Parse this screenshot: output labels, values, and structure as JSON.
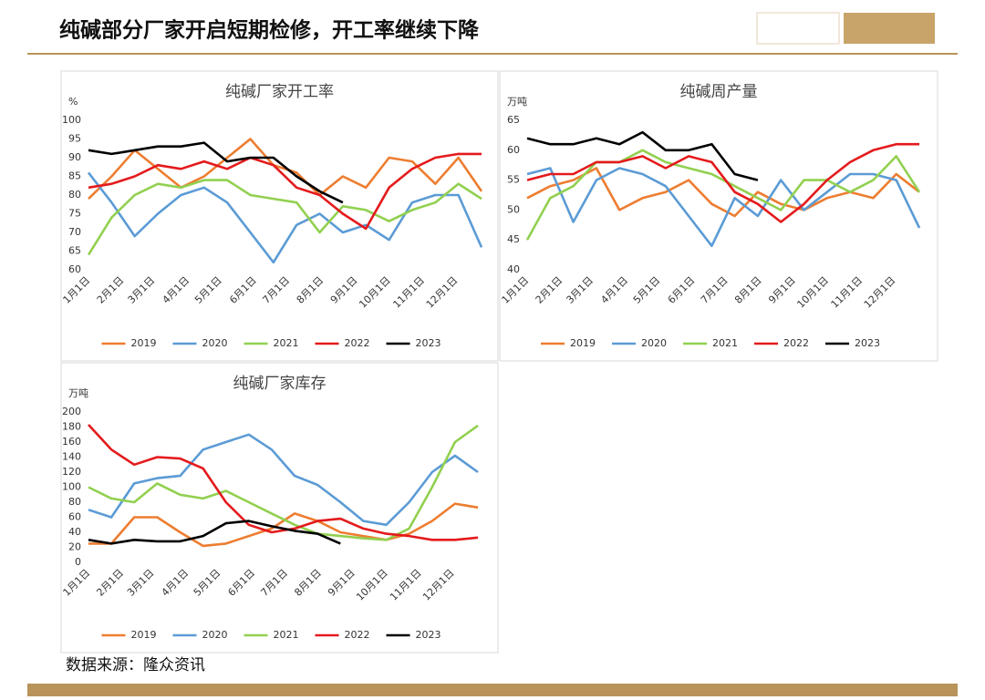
{
  "header": {
    "title": "纯碱部分厂家开启短期检修，开工率继续下降"
  },
  "footer": {
    "source": "数据来源：隆众资讯"
  },
  "chart_data": [
    {
      "type": "line",
      "title": "纯碱厂家开工率",
      "ylabel": "%",
      "x": [
        0,
        3,
        6,
        9,
        12,
        15,
        18,
        21,
        24,
        27,
        30,
        33,
        36,
        39,
        42,
        45,
        48,
        51
      ],
      "xlim": [
        0,
        51
      ],
      "xticks": [
        {
          "value": 0,
          "label": "1月1日"
        },
        {
          "value": 4.4,
          "label": "2月1日"
        },
        {
          "value": 8.4,
          "label": "3月1日"
        },
        {
          "value": 12.9,
          "label": "4月1日"
        },
        {
          "value": 17.1,
          "label": "5月1日"
        },
        {
          "value": 21.6,
          "label": "6月1日"
        },
        {
          "value": 25.9,
          "label": "7月1日"
        },
        {
          "value": 30.3,
          "label": "8月1日"
        },
        {
          "value": 34.7,
          "label": "9月1日"
        },
        {
          "value": 39,
          "label": "10月1日"
        },
        {
          "value": 43.4,
          "label": "11月1日"
        },
        {
          "value": 47.7,
          "label": "12月1日"
        }
      ],
      "ylim": [
        60,
        100
      ],
      "yticks": [
        60,
        65,
        70,
        75,
        80,
        85,
        90,
        95,
        100
      ],
      "grid": false,
      "series": [
        {
          "name": "2019",
          "color": "#ed7d31",
          "values": [
            79,
            85,
            92,
            87,
            82,
            85,
            90,
            95,
            88,
            86,
            80,
            85,
            82,
            90,
            89,
            83,
            90,
            81
          ]
        },
        {
          "name": "2020",
          "color": "#5b9bd5",
          "values": [
            86,
            78,
            69,
            75,
            80,
            82,
            78,
            70,
            62,
            72,
            75,
            70,
            72,
            68,
            78,
            80,
            80,
            66
          ]
        },
        {
          "name": "2021",
          "color": "#92d050",
          "values": [
            64,
            74,
            80,
            83,
            82,
            84,
            84,
            80,
            79,
            78,
            70,
            77,
            76,
            73,
            76,
            78,
            83,
            79
          ]
        },
        {
          "name": "2022",
          "color": "#e41a1c",
          "values": [
            82,
            83,
            85,
            88,
            87,
            89,
            87,
            90,
            88,
            82,
            80,
            75,
            71,
            82,
            87,
            90,
            91,
            91
          ]
        },
        {
          "name": "2023",
          "color": "#000000",
          "values": [
            92,
            91,
            92,
            93,
            93,
            94,
            89,
            90,
            90,
            85,
            81,
            78,
            null,
            null,
            null,
            null,
            null,
            null
          ]
        }
      ]
    },
    {
      "type": "line",
      "title": "纯碱周产量",
      "ylabel": "万吨",
      "x": [
        0,
        3,
        6,
        9,
        12,
        15,
        18,
        21,
        24,
        27,
        30,
        33,
        36,
        39,
        42,
        45,
        48,
        51
      ],
      "xlim": [
        0,
        51
      ],
      "xticks": [
        {
          "value": 0,
          "label": "1月1日"
        },
        {
          "value": 4.4,
          "label": "2月1日"
        },
        {
          "value": 8.4,
          "label": "3月1日"
        },
        {
          "value": 12.9,
          "label": "4月1日"
        },
        {
          "value": 17.1,
          "label": "5月1日"
        },
        {
          "value": 21.6,
          "label": "6月1日"
        },
        {
          "value": 25.9,
          "label": "7月1日"
        },
        {
          "value": 30.3,
          "label": "8月1日"
        },
        {
          "value": 34.7,
          "label": "9月1日"
        },
        {
          "value": 39,
          "label": "10月1日"
        },
        {
          "value": 43.4,
          "label": "11月1日"
        },
        {
          "value": 47.7,
          "label": "12月1日"
        }
      ],
      "ylim": [
        40,
        65
      ],
      "yticks": [
        40,
        45,
        50,
        55,
        60,
        65
      ],
      "grid": false,
      "series": [
        {
          "name": "2019",
          "color": "#ed7d31",
          "values": [
            52,
            54,
            55,
            57,
            50,
            52,
            53,
            55,
            51,
            49,
            53,
            51,
            50,
            52,
            53,
            52,
            56,
            53
          ]
        },
        {
          "name": "2020",
          "color": "#5b9bd5",
          "values": [
            56,
            57,
            48,
            55,
            57,
            56,
            54,
            49,
            44,
            52,
            49,
            55,
            50,
            53,
            56,
            56,
            55,
            47
          ]
        },
        {
          "name": "2021",
          "color": "#92d050",
          "values": [
            45,
            52,
            54,
            58,
            58,
            60,
            58,
            57,
            56,
            54,
            52,
            50,
            55,
            55,
            53,
            55,
            59,
            53
          ]
        },
        {
          "name": "2022",
          "color": "#e41a1c",
          "values": [
            55,
            56,
            56,
            58,
            58,
            59,
            57,
            59,
            58,
            53,
            51,
            48,
            51,
            55,
            58,
            60,
            61,
            61
          ]
        },
        {
          "name": "2023",
          "color": "#000000",
          "values": [
            62,
            61,
            61,
            62,
            61,
            63,
            60,
            60,
            61,
            56,
            55,
            null,
            null,
            null,
            null,
            null,
            null,
            null
          ]
        }
      ]
    },
    {
      "type": "line",
      "title": "纯碱厂家库存",
      "ylabel": "万吨",
      "x": [
        0,
        3,
        6,
        9,
        12,
        15,
        18,
        21,
        24,
        27,
        30,
        33,
        36,
        39,
        42,
        45,
        48,
        51
      ],
      "xlim": [
        0,
        51
      ],
      "xticks": [
        {
          "value": 0,
          "label": "1月1日"
        },
        {
          "value": 4.4,
          "label": "2月1日"
        },
        {
          "value": 8.4,
          "label": "3月1日"
        },
        {
          "value": 12.9,
          "label": "4月1日"
        },
        {
          "value": 17.1,
          "label": "5月1日"
        },
        {
          "value": 21.6,
          "label": "6月1日"
        },
        {
          "value": 25.9,
          "label": "7月1日"
        },
        {
          "value": 30.3,
          "label": "8月1日"
        },
        {
          "value": 34.7,
          "label": "9月1日"
        },
        {
          "value": 39,
          "label": "10月1日"
        },
        {
          "value": 43.4,
          "label": "11月1日"
        },
        {
          "value": 47.7,
          "label": "12月1日"
        }
      ],
      "ylim": [
        0,
        200
      ],
      "yticks": [
        0,
        20,
        40,
        60,
        80,
        100,
        120,
        140,
        160,
        180,
        200
      ],
      "grid": false,
      "series": [
        {
          "name": "2019",
          "color": "#ed7d31",
          "values": [
            25,
            25,
            60,
            60,
            40,
            22,
            25,
            35,
            45,
            65,
            55,
            40,
            35,
            30,
            38,
            55,
            78,
            73
          ]
        },
        {
          "name": "2020",
          "color": "#5b9bd5",
          "values": [
            70,
            60,
            105,
            112,
            115,
            150,
            160,
            170,
            150,
            115,
            103,
            80,
            55,
            50,
            80,
            120,
            142,
            120
          ]
        },
        {
          "name": "2021",
          "color": "#92d050",
          "values": [
            100,
            85,
            80,
            105,
            90,
            85,
            95,
            80,
            65,
            50,
            38,
            35,
            32,
            30,
            45,
            100,
            160,
            182
          ]
        },
        {
          "name": "2022",
          "color": "#e41a1c",
          "values": [
            183,
            150,
            130,
            140,
            138,
            125,
            80,
            50,
            40,
            45,
            55,
            58,
            45,
            38,
            35,
            30,
            30,
            33
          ]
        },
        {
          "name": "2023",
          "color": "#000000",
          "values": [
            30,
            25,
            30,
            28,
            28,
            35,
            52,
            55,
            48,
            42,
            38,
            25,
            null,
            null,
            null,
            null,
            null,
            null
          ]
        }
      ]
    }
  ]
}
